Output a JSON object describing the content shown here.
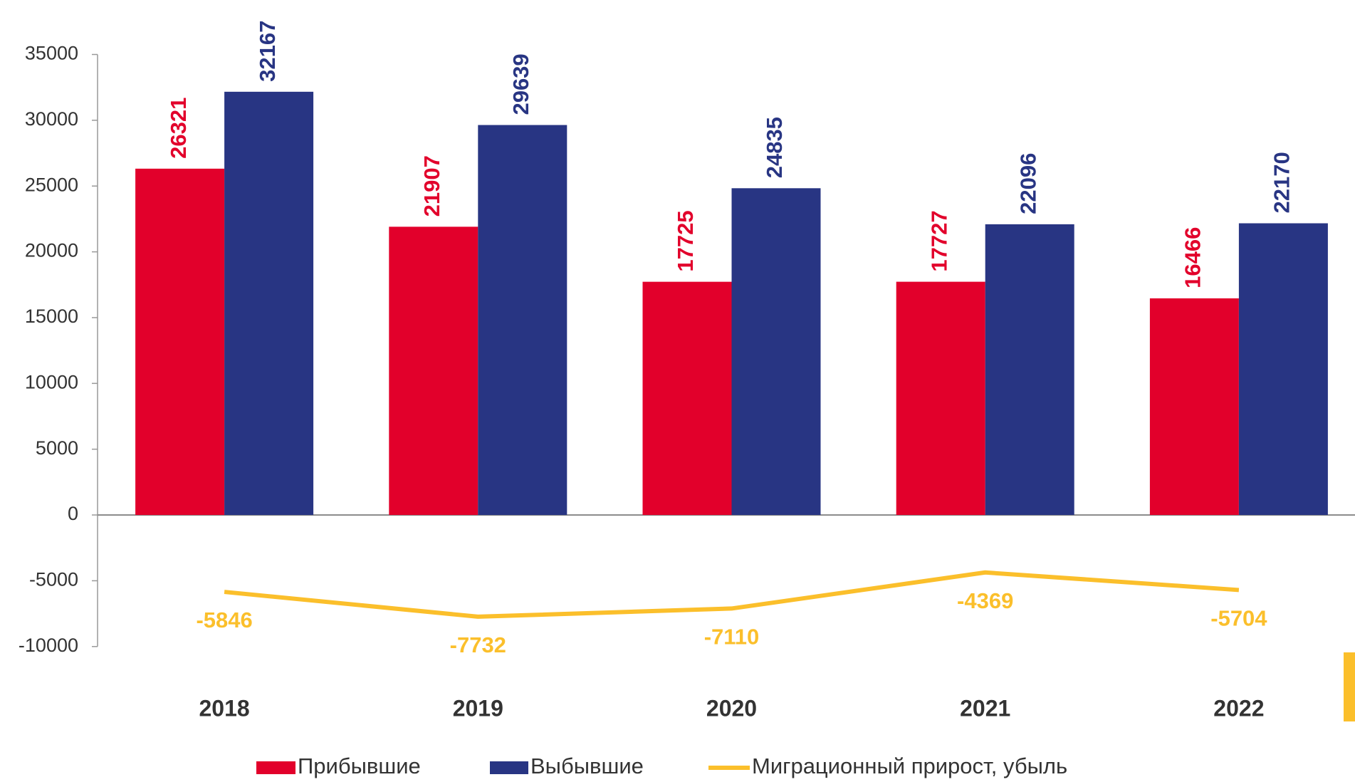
{
  "chart_data": {
    "type": "bar_line",
    "categories": [
      "2018",
      "2019",
      "2020",
      "2021",
      "2022"
    ],
    "series": [
      {
        "name": "Прибывшие",
        "color": "#e2002b",
        "type": "bar",
        "values": [
          26321,
          21907,
          17725,
          17727,
          16466
        ]
      },
      {
        "name": "Выбывшие",
        "color": "#283583",
        "type": "bar",
        "values": [
          32167,
          29639,
          24835,
          22096,
          22170
        ]
      },
      {
        "name": "Миграционный прирост, убыль",
        "color": "#fbbf2b",
        "type": "line",
        "values": [
          -5846,
          -7732,
          -7110,
          -4369,
          -5704
        ]
      }
    ],
    "ylim": [
      -10000,
      35000
    ],
    "yticks": [
      -10000,
      -5000,
      0,
      5000,
      10000,
      15000,
      20000,
      25000,
      30000,
      35000
    ],
    "grid": false,
    "legend": "bottom"
  }
}
